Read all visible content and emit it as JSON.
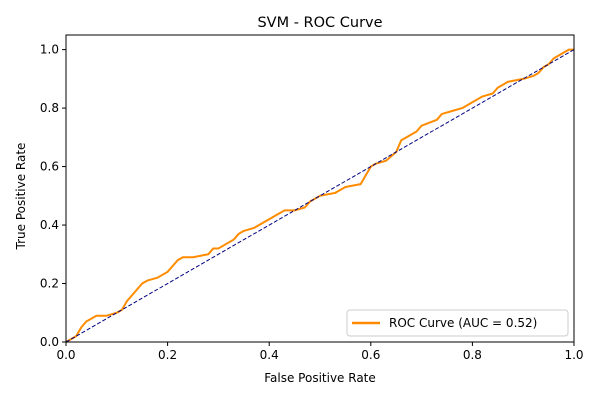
{
  "chart_data": {
    "type": "line",
    "title": "SVM - ROC Curve",
    "xlabel": "False Positive Rate",
    "ylabel": "True Positive Rate",
    "xlim": [
      0,
      1
    ],
    "ylim": [
      0,
      1.05
    ],
    "xticks": [
      0.0,
      0.2,
      0.4,
      0.6,
      0.8,
      1.0
    ],
    "yticks": [
      0.0,
      0.2,
      0.4,
      0.6,
      0.8,
      1.0
    ],
    "xtick_labels": [
      "0.0",
      "0.2",
      "0.4",
      "0.6",
      "0.8",
      "1.0"
    ],
    "ytick_labels": [
      "0.0",
      "0.2",
      "0.4",
      "0.6",
      "0.8",
      "1.0"
    ],
    "grid": false,
    "legend_position": "lower-right",
    "series": [
      {
        "name": "ROC Curve (AUC = 0.52)",
        "color": "#ff8c00",
        "style": "solid",
        "x": [
          0.0,
          0.01,
          0.02,
          0.03,
          0.04,
          0.05,
          0.06,
          0.07,
          0.08,
          0.1,
          0.11,
          0.12,
          0.13,
          0.14,
          0.15,
          0.16,
          0.18,
          0.2,
          0.21,
          0.22,
          0.23,
          0.25,
          0.28,
          0.29,
          0.3,
          0.33,
          0.34,
          0.35,
          0.37,
          0.39,
          0.4,
          0.41,
          0.42,
          0.43,
          0.45,
          0.47,
          0.48,
          0.5,
          0.53,
          0.55,
          0.58,
          0.59,
          0.6,
          0.61,
          0.63,
          0.65,
          0.66,
          0.67,
          0.69,
          0.7,
          0.73,
          0.74,
          0.76,
          0.78,
          0.8,
          0.81,
          0.82,
          0.84,
          0.85,
          0.86,
          0.87,
          0.9,
          0.92,
          0.93,
          0.94,
          0.95,
          0.96,
          0.97,
          0.98,
          0.99,
          1.0
        ],
        "y": [
          0.0,
          0.01,
          0.02,
          0.05,
          0.07,
          0.08,
          0.09,
          0.09,
          0.09,
          0.1,
          0.11,
          0.14,
          0.16,
          0.18,
          0.2,
          0.21,
          0.22,
          0.24,
          0.26,
          0.28,
          0.29,
          0.29,
          0.3,
          0.32,
          0.32,
          0.35,
          0.37,
          0.38,
          0.39,
          0.41,
          0.42,
          0.43,
          0.44,
          0.45,
          0.45,
          0.46,
          0.48,
          0.5,
          0.51,
          0.53,
          0.54,
          0.57,
          0.6,
          0.61,
          0.62,
          0.65,
          0.69,
          0.7,
          0.72,
          0.74,
          0.76,
          0.78,
          0.79,
          0.8,
          0.82,
          0.83,
          0.84,
          0.85,
          0.87,
          0.88,
          0.89,
          0.9,
          0.91,
          0.92,
          0.94,
          0.95,
          0.97,
          0.98,
          0.99,
          1.0,
          1.0
        ]
      },
      {
        "color": "#000080",
        "style": "dashed",
        "x": [
          0,
          1
        ],
        "y": [
          0,
          1
        ]
      }
    ]
  }
}
